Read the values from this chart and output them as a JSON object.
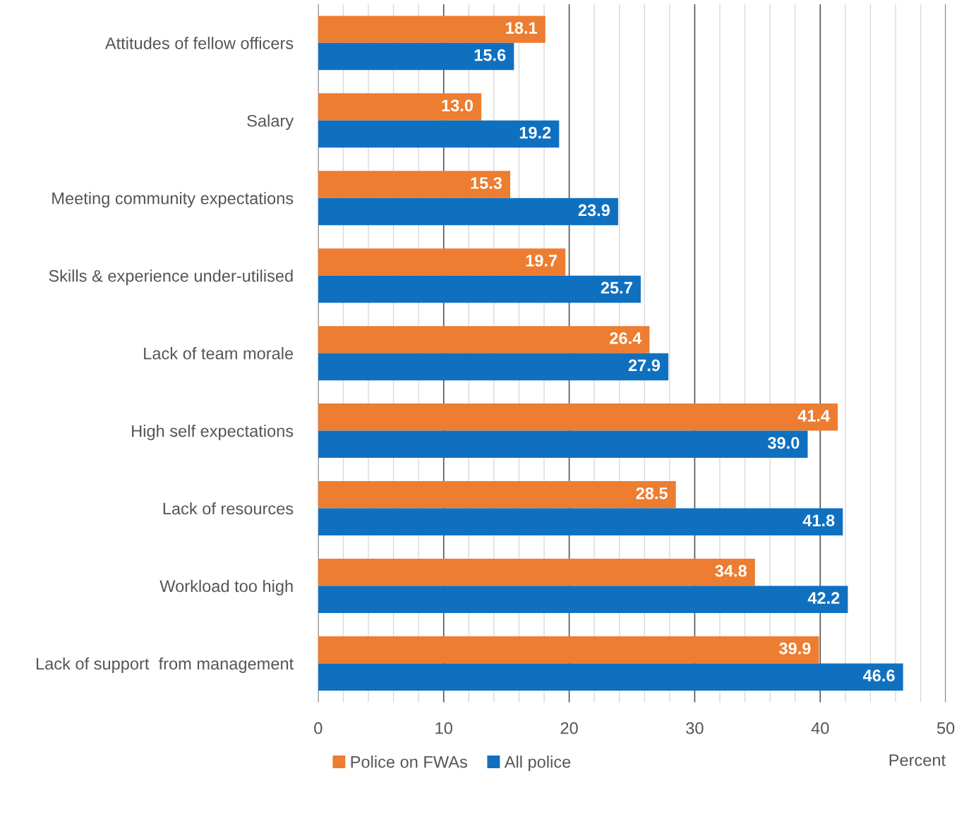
{
  "chart_data": {
    "type": "bar",
    "orientation": "horizontal",
    "xlabel": "Percent",
    "categories": [
      "Attitudes of fellow officers",
      "Salary",
      "Meeting community expectations",
      "Skills & experience under-utilised",
      "Lack of team morale",
      "High self expectations",
      "Lack of resources",
      "Workload too high",
      "Lack of support  from management"
    ],
    "series": [
      {
        "name": "Police on FWAs",
        "color": "#ed7d31",
        "values": [
          18.1,
          13.0,
          15.3,
          19.7,
          26.4,
          41.4,
          28.5,
          34.8,
          39.9
        ],
        "value_labels": [
          "18.1",
          "13.0",
          "15.3",
          "19.7",
          "26.4",
          "41.4",
          "28.5",
          "34.8",
          "39.9"
        ]
      },
      {
        "name": "All police",
        "color": "#1070c0",
        "values": [
          15.6,
          19.2,
          23.9,
          25.7,
          27.9,
          39.0,
          41.8,
          42.2,
          46.6
        ],
        "value_labels": [
          "15.6",
          "19.2",
          "23.9",
          "25.7",
          "27.9",
          "39.0",
          "41.8",
          "42.2",
          "46.6"
        ]
      }
    ],
    "xlim": [
      0,
      50
    ],
    "xticks": [
      0,
      {
        "value": 2,
        "label": null
      },
      {
        "value": 4,
        "label": null
      },
      {
        "value": 6,
        "label": null
      },
      {
        "value": 8,
        "label": null
      },
      10,
      {
        "value": 12,
        "label": null
      },
      {
        "value": 14,
        "label": null
      },
      {
        "value": 16,
        "label": null
      },
      {
        "value": 18,
        "label": null
      },
      20,
      {
        "value": 22,
        "label": null
      },
      {
        "value": 24,
        "label": null
      },
      {
        "value": 26,
        "label": null
      },
      {
        "value": 28,
        "label": null
      },
      30,
      {
        "value": 32,
        "label": null
      },
      {
        "value": 34,
        "label": null
      },
      {
        "value": 36,
        "label": null
      },
      {
        "value": 38,
        "label": null
      },
      40,
      {
        "value": 42,
        "label": null
      },
      {
        "value": 44,
        "label": null
      },
      {
        "value": 46,
        "label": null
      },
      {
        "value": 48,
        "label": null
      },
      50
    ],
    "grid": "x",
    "legend": "bottom left"
  }
}
